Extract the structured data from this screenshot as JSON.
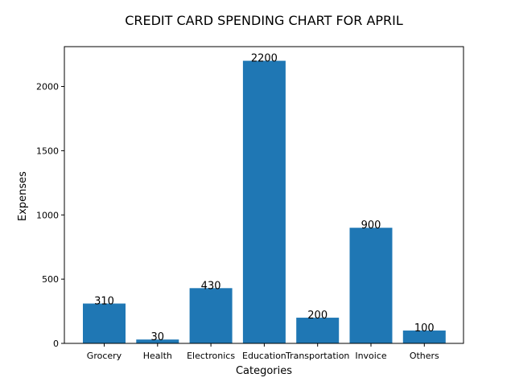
{
  "chart_data": {
    "type": "bar",
    "title": "CREDIT CARD SPENDING CHART FOR APRIL",
    "xlabel": "Categories",
    "ylabel": "Expenses",
    "categories": [
      "Grocery",
      "Health",
      "Electronics",
      "Education",
      "Transportation",
      "Invoice",
      "Others"
    ],
    "values": [
      310,
      30,
      430,
      2200,
      200,
      900,
      100
    ],
    "data_labels": [
      "310",
      "30",
      "430",
      "2200",
      "200",
      "900",
      "100"
    ],
    "ylim": [
      0,
      2310
    ],
    "yticks": [
      0,
      500,
      1000,
      1500,
      2000
    ],
    "ytick_labels": [
      "0",
      "500",
      "1000",
      "1500",
      "2000"
    ],
    "bar_color": "#1f77b4",
    "grid": false,
    "legend": "none"
  }
}
